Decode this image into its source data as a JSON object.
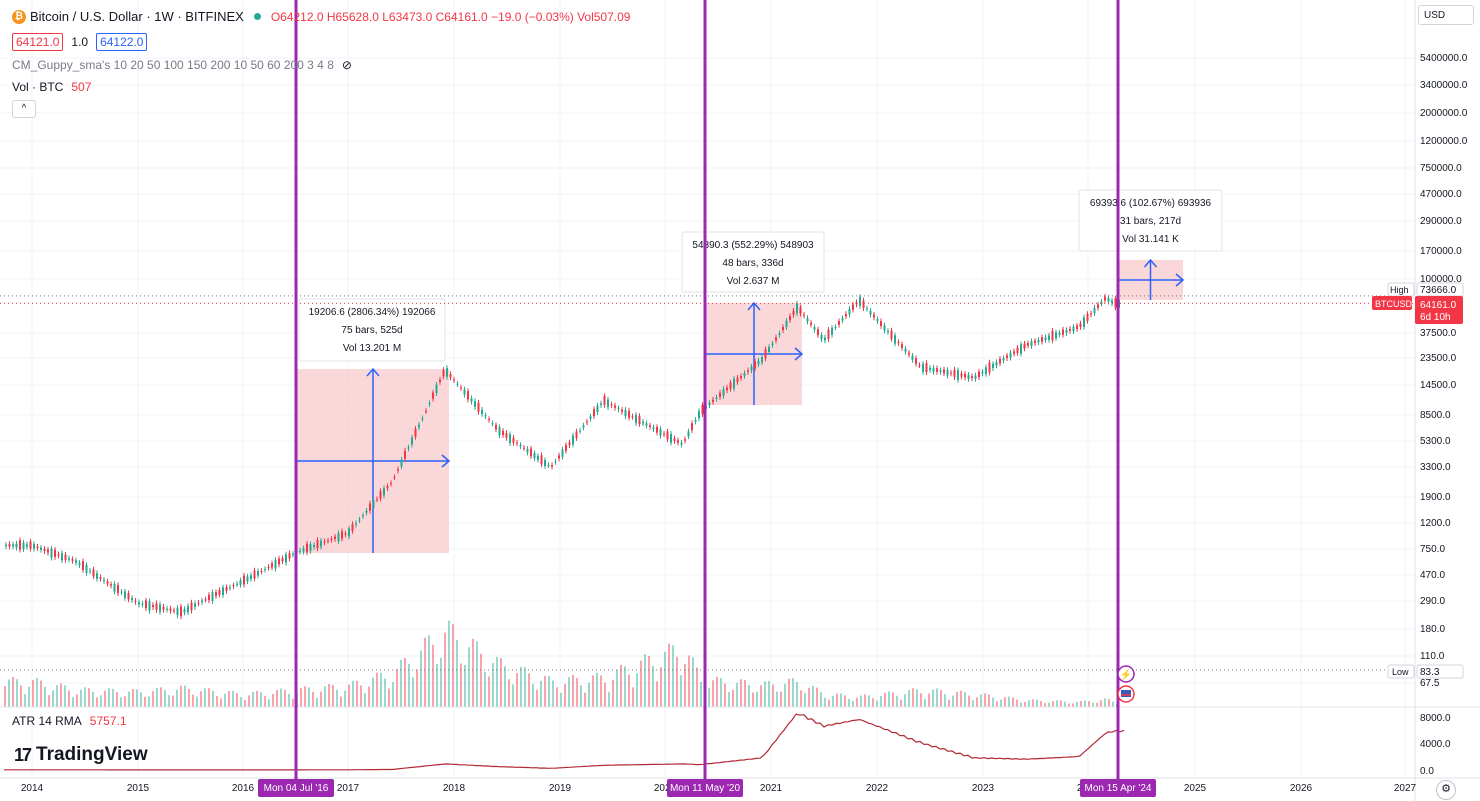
{
  "header": {
    "symbol": "Bitcoin / U.S. Dollar · 1W · BITFINEX",
    "ohlc": "O64212.0 H65628.0 L63473.0 C64161.0 −19.0 (−0.03%) Vol507.09",
    "bid": "64121.0",
    "spread": "1.0",
    "ask": "64122.0",
    "indicator_guppy": "CM_Guppy_sma's 10 20 50 100 150 200 10 50 60 200 3 4 8",
    "vol_label": "Vol · BTC",
    "vol_value": "507",
    "collapse": "^",
    "currency": "USD"
  },
  "atr": {
    "label": "ATR 14 RMA",
    "value": "5757.1"
  },
  "brand": {
    "logo_text": "TradingView",
    "logo_mark": "17"
  },
  "icons": {
    "coin": "bitcoin-icon",
    "eye": "eye-crossed-icon",
    "settings": "gear-icon",
    "flash": "lightning-icon",
    "flag": "us-flag-icon"
  },
  "colors": {
    "up": "#22ab94",
    "down": "#f23645",
    "vline": "#9c27b0",
    "measure": "#2962ff",
    "measure_fill": "#f8c9cc",
    "atr": "#b22833"
  },
  "price_axis": {
    "labels": [
      "5400000.0",
      "3400000.0",
      "2000000.0",
      "1200000.0",
      "750000.0",
      "470000.0",
      "290000.0",
      "170000.0",
      "100000.0",
      "37500.0",
      "23500.0",
      "14500.0",
      "8500.0",
      "5300.0",
      "3300.0",
      "1900.0",
      "1200.0",
      "750.0",
      "470.0",
      "290.0",
      "180.0",
      "110.0",
      "67.5"
    ],
    "high_label": "High",
    "high_value": "73666.0",
    "ticker_label": "BTCUSD",
    "last_price": "64161.0",
    "countdown": "6d 10h",
    "low_label": "Low",
    "low_value": "83.3"
  },
  "atr_axis": {
    "labels": [
      "8000.0",
      "4000.0",
      "0.0"
    ]
  },
  "time_axis": {
    "labels": [
      "2014",
      "2015",
      "2016",
      "2017",
      "2018",
      "2019",
      "2020",
      "2021",
      "2022",
      "2023",
      "2024",
      "2025",
      "2026",
      "2027"
    ],
    "vline_labels": [
      "Mon 04 Jul '16",
      "Mon 11 May '20",
      "Mon 15 Apr '24"
    ]
  },
  "measurements": [
    {
      "line1": "19206.6 (2806.34%) 192066",
      "line2": "75 bars, 525d",
      "line3": "Vol 13.201 M"
    },
    {
      "line1": "54890.3 (552.29%) 548903",
      "line2": "48 bars, 336d",
      "line3": "Vol 2.637 M"
    },
    {
      "line1": "69393.6 (102.67%) 693936",
      "line2": "31 bars, 217d",
      "line3": "Vol 31.141 K"
    }
  ],
  "chart_data": {
    "type": "line",
    "x": [
      "2014-01",
      "2014-06",
      "2015-01",
      "2015-06",
      "2016-01",
      "2016-07",
      "2017-01",
      "2017-06",
      "2017-12",
      "2018-06",
      "2018-12",
      "2019-06",
      "2020-03",
      "2020-05",
      "2020-12",
      "2021-04",
      "2021-07",
      "2021-11",
      "2022-06",
      "2022-12",
      "2023-06",
      "2023-12",
      "2024-03",
      "2024-04"
    ],
    "series": [
      {
        "values": [
          800,
          600,
          280,
          240,
          420,
          700,
          1000,
          2500,
          19000,
          6500,
          3300,
          11000,
          5000,
          9000,
          23000,
          60000,
          33000,
          68000,
          20000,
          16500,
          30000,
          42000,
          71000,
          64161
        ]
      }
    ],
    "volume": [
      300,
      200,
      180,
      220,
      150,
      200,
      250,
      400,
      900,
      500,
      300,
      350,
      700,
      320,
      260,
      300,
      150,
      120,
      200,
      150,
      80,
      60,
      90,
      50
    ],
    "atr": [
      30,
      25,
      20,
      15,
      15,
      20,
      30,
      80,
      900,
      500,
      250,
      700,
      900,
      800,
      1800,
      8500,
      6500,
      7500,
      4000,
      1800,
      1600,
      2000,
      5500,
      5757.1
    ],
    "price_range": [
      67.5,
      5400000
    ],
    "price_scale": "log",
    "grid": true,
    "event_lines": [
      "Mon 04 Jul '16",
      "Mon 11 May '20",
      "Mon 15 Apr '24"
    ]
  }
}
